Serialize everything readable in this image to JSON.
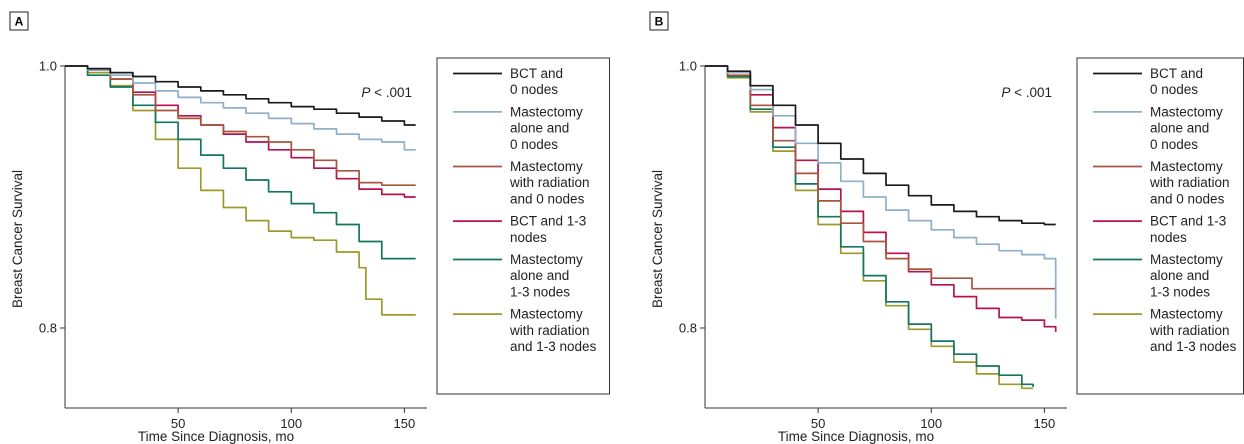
{
  "chart_data": [
    {
      "panel": "A",
      "type": "line",
      "xlabel": "Time Since Diagnosis, mo",
      "ylabel": "Breast Cancer Survival",
      "xlim": [
        0,
        160
      ],
      "ylim": [
        0.75,
        1.0
      ],
      "x_ticks": [
        50,
        100,
        150
      ],
      "y_ticks": [
        0.8,
        1.0
      ],
      "y_tick_labels": [
        "0.8",
        "1.0"
      ],
      "annotation": {
        "italic": "P",
        "text": " < .001"
      },
      "grid": false,
      "legend_position": "right",
      "series": [
        {
          "name": "BCT and 0 nodes",
          "label_lines": [
            "BCT and",
            "0 nodes"
          ],
          "color": "#1a1a1a",
          "points": [
            [
              0,
              1.0
            ],
            [
              10,
              0.998
            ],
            [
              20,
              0.995
            ],
            [
              30,
              0.992
            ],
            [
              40,
              0.988
            ],
            [
              50,
              0.984
            ],
            [
              60,
              0.981
            ],
            [
              70,
              0.978
            ],
            [
              80,
              0.975
            ],
            [
              90,
              0.972
            ],
            [
              100,
              0.969
            ],
            [
              110,
              0.967
            ],
            [
              120,
              0.964
            ],
            [
              130,
              0.961
            ],
            [
              140,
              0.958
            ],
            [
              150,
              0.955
            ],
            [
              155,
              0.955
            ]
          ]
        },
        {
          "name": "Mastectomy alone and 0 nodes",
          "label_lines": [
            "Mastectomy",
            "alone and",
            "0 nodes"
          ],
          "color": "#8fb0c8",
          "points": [
            [
              0,
              1.0
            ],
            [
              10,
              0.997
            ],
            [
              20,
              0.993
            ],
            [
              30,
              0.987
            ],
            [
              40,
              0.981
            ],
            [
              50,
              0.976
            ],
            [
              60,
              0.972
            ],
            [
              70,
              0.968
            ],
            [
              80,
              0.964
            ],
            [
              90,
              0.96
            ],
            [
              100,
              0.956
            ],
            [
              110,
              0.952
            ],
            [
              120,
              0.948
            ],
            [
              130,
              0.944
            ],
            [
              140,
              0.942
            ],
            [
              150,
              0.936
            ],
            [
              155,
              0.936
            ]
          ]
        },
        {
          "name": "Mastectomy with radiation and 0 nodes",
          "label_lines": [
            "Mastectomy",
            "with radiation",
            "and 0 nodes"
          ],
          "color": "#a8553f",
          "points": [
            [
              0,
              1.0
            ],
            [
              10,
              0.997
            ],
            [
              20,
              0.99
            ],
            [
              30,
              0.978
            ],
            [
              40,
              0.966
            ],
            [
              50,
              0.96
            ],
            [
              60,
              0.955
            ],
            [
              70,
              0.95
            ],
            [
              80,
              0.946
            ],
            [
              90,
              0.942
            ],
            [
              100,
              0.936
            ],
            [
              110,
              0.928
            ],
            [
              120,
              0.92
            ],
            [
              130,
              0.911
            ],
            [
              140,
              0.909
            ],
            [
              150,
              0.909
            ],
            [
              155,
              0.909
            ]
          ]
        },
        {
          "name": "BCT and 1-3 nodes",
          "label_lines": [
            "BCT and 1-3",
            "nodes"
          ],
          "color": "#b8124e",
          "points": [
            [
              0,
              1.0
            ],
            [
              10,
              0.997
            ],
            [
              20,
              0.99
            ],
            [
              30,
              0.98
            ],
            [
              40,
              0.97
            ],
            [
              50,
              0.962
            ],
            [
              60,
              0.955
            ],
            [
              70,
              0.948
            ],
            [
              80,
              0.942
            ],
            [
              90,
              0.936
            ],
            [
              100,
              0.93
            ],
            [
              110,
              0.922
            ],
            [
              120,
              0.914
            ],
            [
              130,
              0.906
            ],
            [
              140,
              0.902
            ],
            [
              150,
              0.9
            ],
            [
              155,
              0.9
            ]
          ]
        },
        {
          "name": "Mastectomy alone and 1-3 nodes",
          "label_lines": [
            "Mastectomy",
            "alone and",
            "1-3 nodes"
          ],
          "color": "#13765e",
          "points": [
            [
              0,
              1.0
            ],
            [
              10,
              0.993
            ],
            [
              20,
              0.984
            ],
            [
              30,
              0.97
            ],
            [
              40,
              0.957
            ],
            [
              50,
              0.944
            ],
            [
              60,
              0.932
            ],
            [
              70,
              0.922
            ],
            [
              80,
              0.913
            ],
            [
              90,
              0.904
            ],
            [
              100,
              0.895
            ],
            [
              110,
              0.888
            ],
            [
              120,
              0.879
            ],
            [
              130,
              0.866
            ],
            [
              140,
              0.853
            ],
            [
              150,
              0.853
            ],
            [
              155,
              0.853
            ]
          ]
        },
        {
          "name": "Mastectomy with radiation and 1-3 nodes",
          "label_lines": [
            "Mastectomy",
            "with radiation",
            "and 1-3 nodes"
          ],
          "color": "#9c9a2a",
          "points": [
            [
              0,
              1.0
            ],
            [
              10,
              0.995
            ],
            [
              20,
              0.985
            ],
            [
              30,
              0.966
            ],
            [
              40,
              0.944
            ],
            [
              50,
              0.922
            ],
            [
              60,
              0.905
            ],
            [
              70,
              0.892
            ],
            [
              80,
              0.882
            ],
            [
              90,
              0.874
            ],
            [
              100,
              0.869
            ],
            [
              110,
              0.867
            ],
            [
              120,
              0.858
            ],
            [
              130,
              0.846
            ],
            [
              133,
              0.822
            ],
            [
              140,
              0.81
            ],
            [
              150,
              0.81
            ],
            [
              155,
              0.81
            ]
          ]
        }
      ]
    },
    {
      "panel": "B",
      "type": "line",
      "xlabel": "Time Since Diagnosis, mo",
      "ylabel": "Breast Cancer Survival",
      "xlim": [
        0,
        160
      ],
      "ylim": [
        0.75,
        1.0
      ],
      "x_ticks": [
        50,
        100,
        150
      ],
      "y_ticks": [
        0.8,
        1.0
      ],
      "y_tick_labels": [
        "0.8",
        "1.0"
      ],
      "annotation": {
        "italic": "P",
        "text": " < .001"
      },
      "grid": false,
      "legend_position": "right",
      "series": [
        {
          "name": "BCT and 0 nodes",
          "label_lines": [
            "BCT and",
            "0 nodes"
          ],
          "color": "#1a1a1a",
          "points": [
            [
              0,
              1.0
            ],
            [
              10,
              0.996
            ],
            [
              20,
              0.985
            ],
            [
              30,
              0.97
            ],
            [
              40,
              0.955
            ],
            [
              50,
              0.941
            ],
            [
              60,
              0.929
            ],
            [
              70,
              0.918
            ],
            [
              80,
              0.909
            ],
            [
              90,
              0.901
            ],
            [
              100,
              0.894
            ],
            [
              110,
              0.889
            ],
            [
              120,
              0.885
            ],
            [
              130,
              0.882
            ],
            [
              140,
              0.88
            ],
            [
              150,
              0.879
            ],
            [
              155,
              0.879
            ]
          ]
        },
        {
          "name": "Mastectomy alone and 0 nodes",
          "label_lines": [
            "Mastectomy",
            "alone and",
            "0 nodes"
          ],
          "color": "#8fb0c8",
          "points": [
            [
              0,
              1.0
            ],
            [
              10,
              0.995
            ],
            [
              20,
              0.982
            ],
            [
              30,
              0.962
            ],
            [
              40,
              0.941
            ],
            [
              50,
              0.926
            ],
            [
              60,
              0.912
            ],
            [
              70,
              0.9
            ],
            [
              80,
              0.89
            ],
            [
              90,
              0.882
            ],
            [
              100,
              0.875
            ],
            [
              110,
              0.869
            ],
            [
              120,
              0.864
            ],
            [
              130,
              0.859
            ],
            [
              140,
              0.856
            ],
            [
              150,
              0.853
            ],
            [
              155,
              0.853
            ],
            [
              155,
              0.807
            ]
          ]
        },
        {
          "name": "Mastectomy with radiation and 0 nodes",
          "label_lines": [
            "Mastectomy",
            "with radiation",
            "and 0 nodes"
          ],
          "color": "#a8553f",
          "points": [
            [
              0,
              1.0
            ],
            [
              10,
              0.993
            ],
            [
              20,
              0.97
            ],
            [
              30,
              0.943
            ],
            [
              40,
              0.918
            ],
            [
              50,
              0.897
            ],
            [
              60,
              0.88
            ],
            [
              70,
              0.866
            ],
            [
              80,
              0.853
            ],
            [
              90,
              0.845
            ],
            [
              100,
              0.838
            ],
            [
              110,
              0.838
            ],
            [
              115,
              0.838
            ],
            [
              118,
              0.83
            ],
            [
              130,
              0.83
            ],
            [
              150,
              0.83
            ],
            [
              155,
              0.83
            ]
          ]
        },
        {
          "name": "BCT and 1-3 nodes",
          "label_lines": [
            "BCT and 1-3",
            "nodes"
          ],
          "color": "#b8124e",
          "points": [
            [
              0,
              1.0
            ],
            [
              10,
              0.995
            ],
            [
              20,
              0.978
            ],
            [
              30,
              0.953
            ],
            [
              40,
              0.928
            ],
            [
              50,
              0.906
            ],
            [
              60,
              0.889
            ],
            [
              70,
              0.873
            ],
            [
              80,
              0.857
            ],
            [
              90,
              0.843
            ],
            [
              100,
              0.833
            ],
            [
              110,
              0.824
            ],
            [
              120,
              0.815
            ],
            [
              130,
              0.808
            ],
            [
              140,
              0.806
            ],
            [
              150,
              0.801
            ],
            [
              155,
              0.797
            ]
          ]
        },
        {
          "name": "Mastectomy alone and 1-3 nodes",
          "label_lines": [
            "Mastectomy",
            "alone and",
            "1-3 nodes"
          ],
          "color": "#13765e",
          "points": [
            [
              0,
              1.0
            ],
            [
              10,
              0.992
            ],
            [
              20,
              0.967
            ],
            [
              30,
              0.938
            ],
            [
              40,
              0.91
            ],
            [
              50,
              0.885
            ],
            [
              60,
              0.862
            ],
            [
              70,
              0.84
            ],
            [
              80,
              0.82
            ],
            [
              90,
              0.803
            ],
            [
              100,
              0.79
            ],
            [
              110,
              0.78
            ],
            [
              120,
              0.771
            ],
            [
              130,
              0.764
            ],
            [
              140,
              0.757
            ],
            [
              145,
              0.755
            ]
          ]
        },
        {
          "name": "Mastectomy with radiation and 1-3 nodes",
          "label_lines": [
            "Mastectomy",
            "with radiation",
            "and 1-3 nodes"
          ],
          "color": "#9c9a2a",
          "points": [
            [
              0,
              1.0
            ],
            [
              10,
              0.991
            ],
            [
              20,
              0.965
            ],
            [
              30,
              0.935
            ],
            [
              40,
              0.905
            ],
            [
              50,
              0.879
            ],
            [
              60,
              0.857
            ],
            [
              70,
              0.836
            ],
            [
              80,
              0.817
            ],
            [
              90,
              0.799
            ],
            [
              100,
              0.786
            ],
            [
              110,
              0.774
            ],
            [
              120,
              0.765
            ],
            [
              130,
              0.757
            ],
            [
              140,
              0.754
            ],
            [
              145,
              0.754
            ]
          ]
        }
      ]
    }
  ]
}
